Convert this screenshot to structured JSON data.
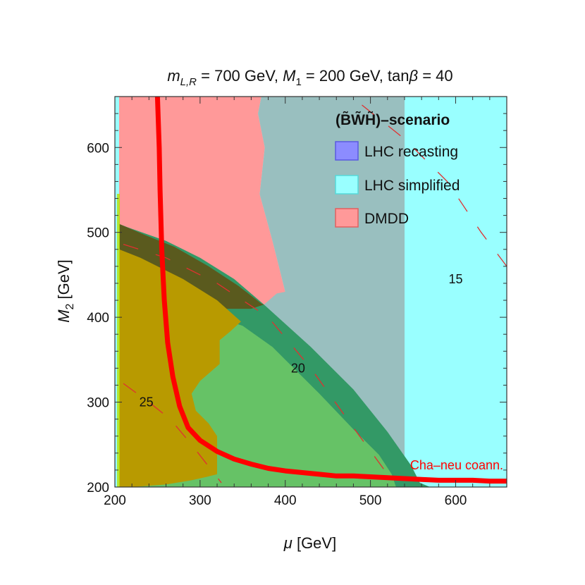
{
  "chart_data": {
    "type": "area",
    "title": {
      "m": "m",
      "m_sub": "L,R",
      "part1": " = 700 GeV, ",
      "M": "M",
      "M_sub": "1",
      "part2": " = 200 GeV, tan",
      "beta": "β",
      "part3": " = 40"
    },
    "xlabel": {
      "symbol": "μ",
      "unit": " [GeV]"
    },
    "ylabel": {
      "symbol": "M",
      "sub": "2",
      "unit": " [GeV]"
    },
    "xlim": [
      200,
      660
    ],
    "ylim": [
      200,
      660
    ],
    "x_ticks": [
      200,
      300,
      400,
      500,
      600
    ],
    "y_ticks": [
      200,
      300,
      400,
      500,
      600
    ],
    "x_tick_labels": [
      "200",
      "300",
      "400",
      "500",
      "600"
    ],
    "y_tick_labels": [
      "200",
      "300",
      "400",
      "500",
      "600"
    ],
    "legend": {
      "title": "(B̃W̃H̃)–scenario",
      "placement": "top-right",
      "entries": [
        "LHC recasting",
        "LHC simplified",
        "DMDD"
      ]
    },
    "colors": {
      "lhc_recasting": "#8c8cff",
      "lhc_simplified": "#99ffff",
      "dmdd": "#ff9999",
      "relic_band": "#339966",
      "relic_inner": "#66c266",
      "overlap_olive": "#b89a00",
      "overlap_dark": "#5a5a1e",
      "coann_line": "#ff0000",
      "contour": "#e03030"
    },
    "regions": {
      "lhc_simplified": [
        [
          200,
          660
        ],
        [
          660,
          660
        ],
        [
          660,
          200
        ],
        [
          200,
          200
        ]
      ],
      "dmdd": [
        [
          205,
          660
        ],
        [
          372,
          660
        ],
        [
          368,
          640
        ],
        [
          376,
          600
        ],
        [
          370,
          545
        ],
        [
          385,
          490
        ],
        [
          395,
          450
        ],
        [
          400,
          430
        ],
        [
          385,
          415
        ],
        [
          370,
          412
        ],
        [
          205,
          412
        ]
      ],
      "lhc_recasting": [
        [
          372,
          660
        ],
        [
          540,
          660
        ],
        [
          540,
          200
        ],
        [
          470,
          200
        ],
        [
          420,
          280
        ],
        [
          390,
          350
        ],
        [
          375,
          415
        ],
        [
          390,
          428
        ],
        [
          400,
          430
        ],
        [
          395,
          450
        ],
        [
          385,
          490
        ],
        [
          370,
          545
        ],
        [
          376,
          600
        ],
        [
          368,
          640
        ]
      ],
      "relic_band": [
        [
          205,
          510
        ],
        [
          215,
          506
        ],
        [
          260,
          490
        ],
        [
          300,
          470
        ],
        [
          340,
          445
        ],
        [
          375,
          415
        ],
        [
          430,
          365
        ],
        [
          480,
          315
        ],
        [
          520,
          265
        ],
        [
          548,
          225
        ],
        [
          558,
          205
        ],
        [
          570,
          200
        ],
        [
          205,
          200
        ]
      ],
      "relic_inner": [
        [
          205,
          450
        ],
        [
          230,
          440
        ],
        [
          280,
          420
        ],
        [
          320,
          400
        ],
        [
          350,
          390
        ],
        [
          385,
          365
        ],
        [
          440,
          310
        ],
        [
          480,
          268
        ],
        [
          510,
          238
        ],
        [
          525,
          215
        ],
        [
          530,
          200
        ],
        [
          205,
          200
        ]
      ],
      "overlap_dark": [
        [
          205,
          545
        ],
        [
          205,
          510
        ],
        [
          235,
          497
        ],
        [
          270,
          483
        ],
        [
          310,
          460
        ],
        [
          345,
          437
        ],
        [
          372,
          416
        ],
        [
          375,
          415
        ],
        [
          360,
          410
        ],
        [
          300,
          410
        ],
        [
          205,
          410
        ]
      ],
      "overlap_olive": [
        [
          205,
          480
        ],
        [
          230,
          470
        ],
        [
          280,
          445
        ],
        [
          320,
          420
        ],
        [
          348,
          395
        ],
        [
          335,
          383
        ],
        [
          323,
          373
        ],
        [
          323,
          345
        ],
        [
          300,
          325
        ],
        [
          290,
          310
        ],
        [
          295,
          290
        ],
        [
          310,
          275
        ],
        [
          320,
          260
        ],
        [
          320,
          215
        ],
        [
          308,
          212
        ],
        [
          290,
          208
        ],
        [
          260,
          203
        ],
        [
          220,
          200
        ],
        [
          205,
          200
        ]
      ]
    },
    "coannihilation_curve": {
      "label": "Cha–neu coann.",
      "points": [
        [
          250,
          660
        ],
        [
          252,
          600
        ],
        [
          253,
          550
        ],
        [
          255,
          480
        ],
        [
          258,
          420
        ],
        [
          262,
          370
        ],
        [
          268,
          330
        ],
        [
          276,
          295
        ],
        [
          286,
          270
        ],
        [
          300,
          255
        ],
        [
          320,
          242
        ],
        [
          340,
          233
        ],
        [
          360,
          227
        ],
        [
          380,
          222
        ],
        [
          400,
          219
        ],
        [
          420,
          217
        ],
        [
          440,
          215
        ],
        [
          460,
          213
        ],
        [
          480,
          213
        ],
        [
          500,
          212
        ],
        [
          520,
          211
        ],
        [
          540,
          210
        ],
        [
          560,
          209
        ],
        [
          580,
          208
        ],
        [
          600,
          208
        ],
        [
          620,
          208
        ],
        [
          640,
          207
        ],
        [
          660,
          207
        ]
      ]
    },
    "contours": [
      {
        "label": "15",
        "points": [
          [
            490,
            650
          ],
          [
            540,
            610
          ],
          [
            590,
            560
          ],
          [
            630,
            500
          ],
          [
            660,
            460
          ]
        ],
        "label_at": [
          600,
          445
        ]
      },
      {
        "label": "20",
        "points": [
          [
            210,
            486
          ],
          [
            260,
            470
          ],
          [
            320,
            440
          ],
          [
            380,
            400
          ],
          [
            430,
            340
          ],
          [
            480,
            270
          ],
          [
            520,
            215
          ]
        ],
        "label_at": [
          415,
          340
        ]
      },
      {
        "label": "25",
        "points": [
          [
            210,
            322
          ],
          [
            240,
            300
          ],
          [
            265,
            280
          ],
          [
            290,
            250
          ],
          [
            325,
            205
          ]
        ],
        "label_at": [
          237,
          300
        ]
      }
    ]
  }
}
